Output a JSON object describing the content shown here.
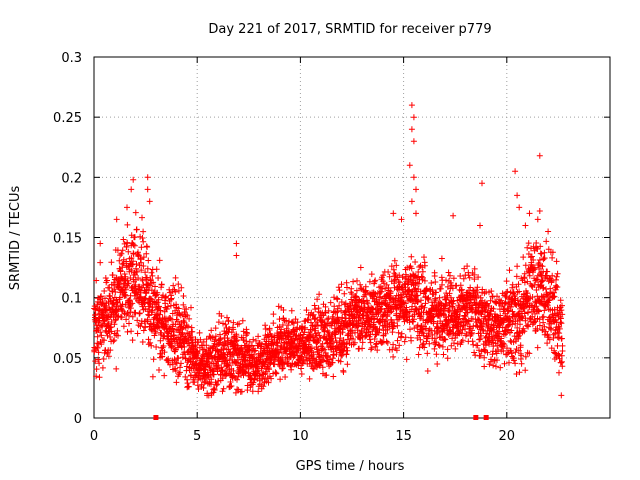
{
  "chart_data": {
    "type": "scatter",
    "title": "Day 221 of 2017, SRMTID for receiver p779",
    "xlabel": "GPS time / hours",
    "ylabel": "SRMTID / TECUs",
    "xlim": [
      0,
      25
    ],
    "ylim": [
      0,
      0.3
    ],
    "x_ticks": [
      0,
      5,
      10,
      15,
      20
    ],
    "x_tick_labels": [
      "0",
      "5",
      "10",
      "15",
      "20"
    ],
    "y_ticks": [
      0,
      0.05,
      0.1,
      0.15,
      0.2,
      0.25,
      0.3
    ],
    "y_tick_labels": [
      "0",
      "0.05",
      "0.1",
      "0.15",
      "0.2",
      "0.25",
      "0.3"
    ],
    "grid": true,
    "marker": "+",
    "color": "#ff0000",
    "baseline_markers_x": [
      3.0,
      18.5,
      19.0
    ],
    "series": [
      {
        "name": "SRMTID",
        "profile_hours": [
          0.0,
          0.3,
          0.8,
          1.5,
          2.0,
          2.5,
          3.0,
          3.5,
          4.0,
          4.5,
          5.0,
          5.5,
          6.0,
          6.5,
          7.0,
          7.5,
          8.0,
          8.5,
          9.0,
          9.5,
          10.0,
          10.5,
          11.0,
          11.5,
          12.0,
          12.5,
          13.0,
          13.5,
          14.0,
          14.5,
          15.0,
          15.5,
          16.0,
          16.5,
          17.0,
          17.5,
          18.0,
          18.5,
          19.0,
          19.5,
          20.0,
          20.5,
          21.0,
          21.5,
          22.0,
          22.5,
          22.7
        ],
        "profile_median": [
          0.07,
          0.08,
          0.085,
          0.11,
          0.115,
          0.1,
          0.085,
          0.075,
          0.07,
          0.06,
          0.045,
          0.045,
          0.05,
          0.055,
          0.05,
          0.045,
          0.045,
          0.055,
          0.06,
          0.06,
          0.06,
          0.065,
          0.065,
          0.07,
          0.075,
          0.085,
          0.085,
          0.085,
          0.09,
          0.095,
          0.1,
          0.1,
          0.09,
          0.085,
          0.085,
          0.085,
          0.09,
          0.09,
          0.08,
          0.075,
          0.08,
          0.085,
          0.1,
          0.11,
          0.1,
          0.075,
          0.07
        ],
        "profile_spread": [
          0.03,
          0.03,
          0.03,
          0.035,
          0.04,
          0.035,
          0.03,
          0.03,
          0.03,
          0.025,
          0.02,
          0.02,
          0.025,
          0.025,
          0.025,
          0.02,
          0.02,
          0.02,
          0.02,
          0.02,
          0.02,
          0.02,
          0.025,
          0.025,
          0.025,
          0.025,
          0.025,
          0.025,
          0.025,
          0.03,
          0.03,
          0.03,
          0.03,
          0.025,
          0.025,
          0.025,
          0.025,
          0.025,
          0.025,
          0.025,
          0.03,
          0.035,
          0.035,
          0.035,
          0.035,
          0.03,
          0.03
        ],
        "outliers": [
          [
            0.3,
            0.145
          ],
          [
            1.1,
            0.165
          ],
          [
            1.6,
            0.175
          ],
          [
            1.8,
            0.19
          ],
          [
            1.9,
            0.198
          ],
          [
            2.6,
            0.2
          ],
          [
            2.6,
            0.19
          ],
          [
            2.7,
            0.18
          ],
          [
            6.9,
            0.145
          ],
          [
            6.9,
            0.135
          ],
          [
            14.5,
            0.17
          ],
          [
            14.9,
            0.165
          ],
          [
            15.4,
            0.26
          ],
          [
            15.5,
            0.25
          ],
          [
            15.4,
            0.24
          ],
          [
            15.5,
            0.23
          ],
          [
            15.3,
            0.21
          ],
          [
            15.5,
            0.2
          ],
          [
            15.6,
            0.19
          ],
          [
            15.4,
            0.18
          ],
          [
            15.6,
            0.17
          ],
          [
            17.4,
            0.168
          ],
          [
            18.8,
            0.195
          ],
          [
            18.7,
            0.16
          ],
          [
            20.4,
            0.205
          ],
          [
            20.5,
            0.185
          ],
          [
            20.6,
            0.175
          ],
          [
            21.1,
            0.17
          ],
          [
            21.6,
            0.218
          ],
          [
            21.6,
            0.172
          ],
          [
            21.5,
            0.165
          ],
          [
            20.9,
            0.16
          ],
          [
            22.0,
            0.155
          ]
        ]
      }
    ]
  }
}
